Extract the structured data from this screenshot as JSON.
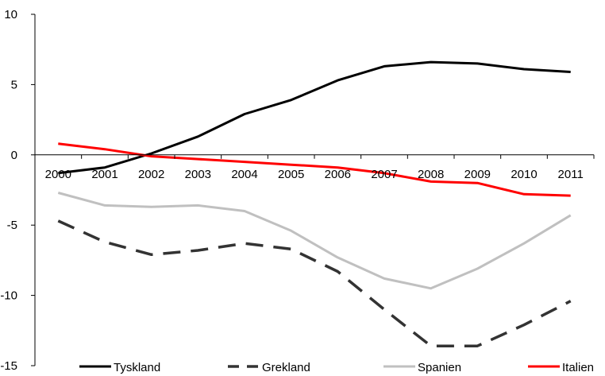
{
  "chart_data": {
    "type": "line",
    "title": "",
    "xlabel": "",
    "ylabel": "",
    "categories": [
      "2000",
      "2001",
      "2002",
      "2003",
      "2004",
      "2005",
      "2006",
      "2007",
      "2008",
      "2009",
      "2010",
      "2011"
    ],
    "ylim": [
      -15,
      10
    ],
    "yticks": [
      -15,
      -10,
      -5,
      0,
      5,
      10
    ],
    "grid": false,
    "legend_position": "bottom",
    "series": [
      {
        "name": "Tyskland",
        "color": "#000000",
        "dash": "solid",
        "values": [
          -1.3,
          -0.9,
          0.1,
          1.3,
          2.9,
          3.9,
          5.3,
          6.3,
          6.6,
          6.5,
          6.1,
          5.9
        ]
      },
      {
        "name": "Grekland",
        "color": "#333333",
        "dash": "dashed",
        "values": [
          -4.7,
          -6.2,
          -7.1,
          -6.8,
          -6.3,
          -6.7,
          -8.3,
          -11.0,
          -13.6,
          -13.6,
          -12.1,
          -10.4
        ]
      },
      {
        "name": "Spanien",
        "color": "#c0c0c0",
        "dash": "solid",
        "values": [
          -2.7,
          -3.6,
          -3.7,
          -3.6,
          -4.0,
          -5.4,
          -7.3,
          -8.8,
          -9.5,
          -8.1,
          -6.3,
          -4.3
        ]
      },
      {
        "name": "Italien",
        "color": "#ff0000",
        "dash": "solid",
        "values": [
          0.8,
          0.4,
          -0.1,
          -0.3,
          -0.5,
          -0.7,
          -0.9,
          -1.3,
          -1.9,
          -2.0,
          -2.8,
          -2.9
        ]
      }
    ]
  }
}
